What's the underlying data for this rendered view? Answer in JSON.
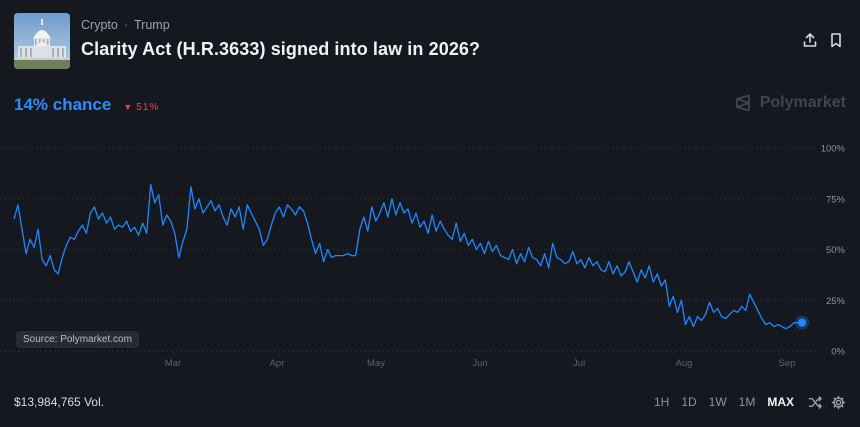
{
  "market": {
    "breadcrumb": [
      "Crypto",
      "Trump"
    ],
    "breadcrumb_sep": "·",
    "title": "Clarity Act (H.R.3633) signed into law in 2026?",
    "chance_text": "14% chance",
    "change_text": "51%",
    "change_direction": "down",
    "brand": "Polymarket",
    "source_label": "Source: Polymarket.com",
    "volume_text": "$13,984,765 Vol."
  },
  "actions": {
    "share_icon": "share-icon",
    "bookmark_icon": "bookmark-icon"
  },
  "range_buttons": [
    "1H",
    "1D",
    "1W",
    "1M",
    "MAX"
  ],
  "range_selected": "MAX",
  "footer_icons": [
    "shuffle-icon",
    "gear-icon"
  ],
  "colors": {
    "accent": "#2e8bff",
    "negative": "#e0475a",
    "background": "#15191f"
  },
  "chart_data": {
    "type": "line",
    "series": [
      {
        "values": [
          65,
          72,
          60,
          48,
          55,
          51,
          60,
          45,
          42,
          47,
          40,
          38,
          46,
          52,
          56,
          55,
          59,
          62,
          58,
          68,
          71,
          65,
          68,
          63,
          66,
          60,
          62,
          61,
          64,
          59,
          61,
          57,
          63,
          58,
          82,
          73,
          77,
          62,
          67,
          64,
          58,
          46,
          54,
          60,
          81,
          70,
          75,
          68,
          71,
          74,
          69,
          72,
          66,
          62,
          70,
          66,
          71,
          60,
          72,
          68,
          64,
          60,
          52,
          55,
          62,
          68,
          71,
          66,
          72,
          70,
          67,
          71,
          69,
          63,
          55,
          48,
          53,
          44,
          50,
          46,
          47,
          47,
          47,
          48,
          47,
          47,
          60,
          66,
          59,
          71,
          64,
          68,
          73,
          66,
          75,
          67,
          73,
          68,
          70,
          63,
          68,
          61,
          64,
          58,
          67,
          59,
          64,
          60,
          57,
          55,
          63,
          54,
          58,
          52,
          55,
          50,
          53,
          48,
          54,
          49,
          52,
          47,
          46,
          45,
          50,
          43,
          48,
          44,
          51,
          46,
          45,
          42,
          48,
          41,
          53,
          46,
          45,
          43,
          44,
          49,
          43,
          45,
          41,
          46,
          42,
          44,
          40,
          39,
          44,
          38,
          42,
          37,
          39,
          44,
          39,
          34,
          40,
          36,
          42,
          34,
          38,
          32,
          35,
          22,
          27,
          19,
          25,
          13,
          17,
          12,
          17,
          15,
          18,
          24,
          19,
          21,
          17,
          16,
          18,
          20,
          19,
          22,
          20,
          28,
          24,
          20,
          16,
          13,
          14,
          12,
          13,
          12,
          11,
          12,
          14,
          14,
          14
        ],
        "last_point": 14
      }
    ],
    "x_tick_labels": [
      "Mar",
      "Apr",
      "May",
      "Jun",
      "Jul",
      "Aug",
      "Sep"
    ],
    "y_tick_labels": [
      "100%",
      "75%",
      "50%",
      "25%",
      "0%"
    ],
    "ylim": [
      0,
      100
    ],
    "grid": true,
    "y_axis_side": "right"
  }
}
